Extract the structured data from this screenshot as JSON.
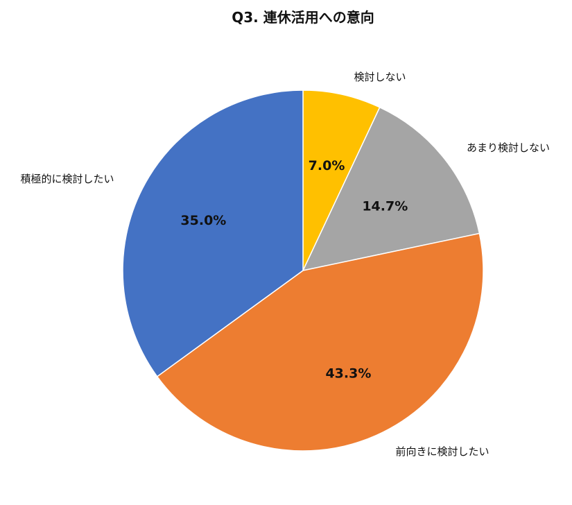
{
  "chart_data": {
    "type": "pie",
    "title": "Q3. 連休活用への意向",
    "slices": [
      {
        "label": "検討しない",
        "value": 7.0,
        "value_label": "7.0%",
        "color": "#FFC000"
      },
      {
        "label": "あまり検討しない",
        "value": 14.7,
        "value_label": "14.7%",
        "color": "#A5A5A5"
      },
      {
        "label": "前向きに検討したい",
        "value": 43.3,
        "value_label": "43.3%",
        "color": "#ED7D31"
      },
      {
        "label": "積極的に検討したい",
        "value": 35.0,
        "value_label": "35.0%",
        "color": "#4472C4"
      }
    ],
    "start_angle": "12 o'clock",
    "direction": "clockwise"
  }
}
